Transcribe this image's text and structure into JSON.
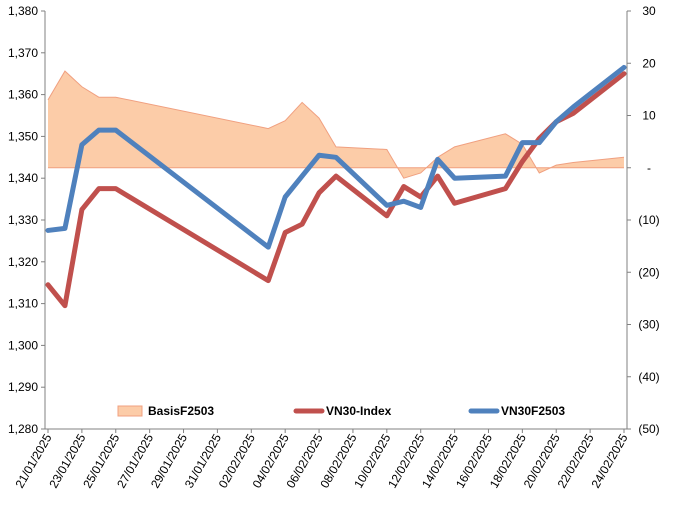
{
  "chart_data": {
    "type": "line",
    "x": [
      "21/01/2025",
      "22/01/2025",
      "23/01/2025",
      "24/01/2025",
      "25/01/2025",
      "03/02/2025",
      "04/02/2025",
      "05/02/2025",
      "06/02/2025",
      "07/02/2025",
      "10/02/2025",
      "11/02/2025",
      "12/02/2025",
      "13/02/2025",
      "14/02/2025",
      "17/02/2025",
      "18/02/2025",
      "19/02/2025",
      "20/02/2025",
      "21/02/2025",
      "24/02/2025"
    ],
    "x_tick_labels": [
      "21/01/2025",
      "23/01/2025",
      "25/01/2025",
      "27/01/2025",
      "29/01/2025",
      "31/01/2025",
      "02/02/2025",
      "04/02/2025",
      "06/02/2025",
      "08/02/2025",
      "10/02/2025",
      "12/02/2025",
      "14/02/2025",
      "16/02/2025",
      "18/02/2025",
      "20/02/2025",
      "22/02/2025",
      "24/02/2025"
    ],
    "y_left": {
      "ylim": [
        1280,
        1380
      ],
      "ticks": [
        "1,280",
        "1,290",
        "1,300",
        "1,310",
        "1,320",
        "1,330",
        "1,340",
        "1,350",
        "1,360",
        "1,370",
        "1,380"
      ]
    },
    "y_right": {
      "ylim": [
        -50,
        30
      ],
      "ticks": [
        "(50)",
        "(40)",
        "(30)",
        "(20)",
        "(10)",
        "-",
        "10",
        "20",
        "30"
      ]
    },
    "series": [
      {
        "name": "BasisF2503",
        "kind": "area",
        "axis": "right",
        "color": "#fccca8",
        "edge_color": "#f0a080",
        "values": [
          13,
          18.5,
          15.5,
          13.5,
          13.5,
          7.5,
          9,
          12.5,
          9.5,
          4,
          3.5,
          -2,
          -1,
          2,
          4,
          6.5,
          4.5,
          -1,
          0.5,
          1,
          2
        ]
      },
      {
        "name": "VN30-Index",
        "kind": "line",
        "axis": "left",
        "color": "#c0504d",
        "values": [
          1314.5,
          1309.5,
          1332.5,
          1337.5,
          1337.5,
          1315.5,
          1327,
          1329,
          1336.5,
          1340.5,
          1331,
          1338,
          1335.5,
          1340.5,
          1334,
          1337.5,
          1344,
          1349.5,
          1353.5,
          1355.5,
          1365
        ]
      },
      {
        "name": "VN30F2503",
        "kind": "line",
        "axis": "left",
        "color": "#4f81bd",
        "values": [
          1327.5,
          1328,
          1348,
          1351.5,
          1351.5,
          1323.5,
          1335.5,
          1340.5,
          1345.5,
          1345,
          1333.5,
          1334.5,
          1333,
          1344.5,
          1340,
          1340.5,
          1348.5,
          1348.5,
          1353.5,
          1357,
          1366.5
        ]
      }
    ],
    "legend_position": "bottom-inside",
    "grid": false
  }
}
